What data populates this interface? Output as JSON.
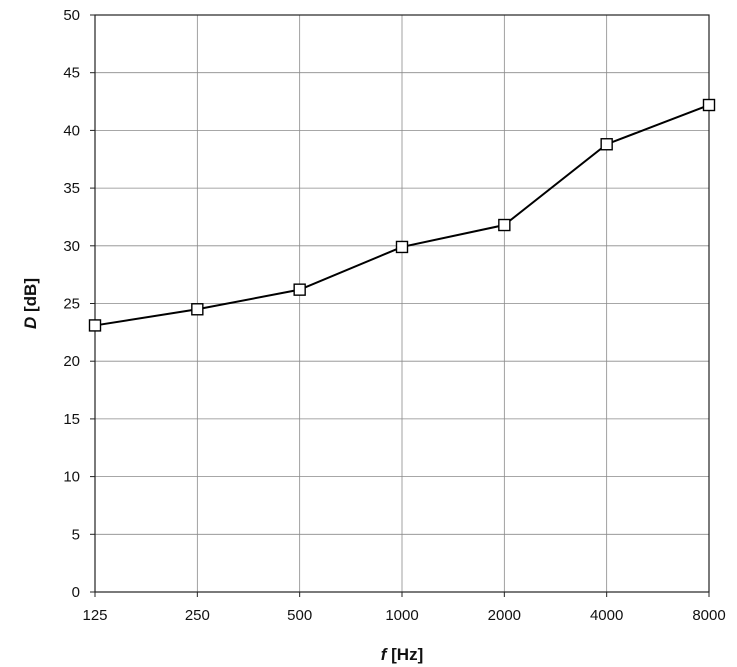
{
  "chart_data": {
    "type": "line",
    "categories": [
      "125",
      "250",
      "500",
      "1000",
      "2000",
      "4000",
      "8000"
    ],
    "series": [
      {
        "values": [
          23.1,
          24.5,
          26.2,
          29.9,
          31.8,
          38.8,
          42.2
        ]
      }
    ],
    "xlabel": {
      "var": "f",
      "unit": " [Hz]"
    },
    "ylabel": {
      "var": "D",
      "unit": " [dB]"
    },
    "ylim": [
      0,
      50
    ],
    "yticks": [
      0,
      5,
      10,
      15,
      20,
      25,
      30,
      35,
      40,
      45,
      50
    ],
    "grid": true,
    "marker": "open-square",
    "line_color": "#000000",
    "grid_color": "#8a8a8a"
  }
}
